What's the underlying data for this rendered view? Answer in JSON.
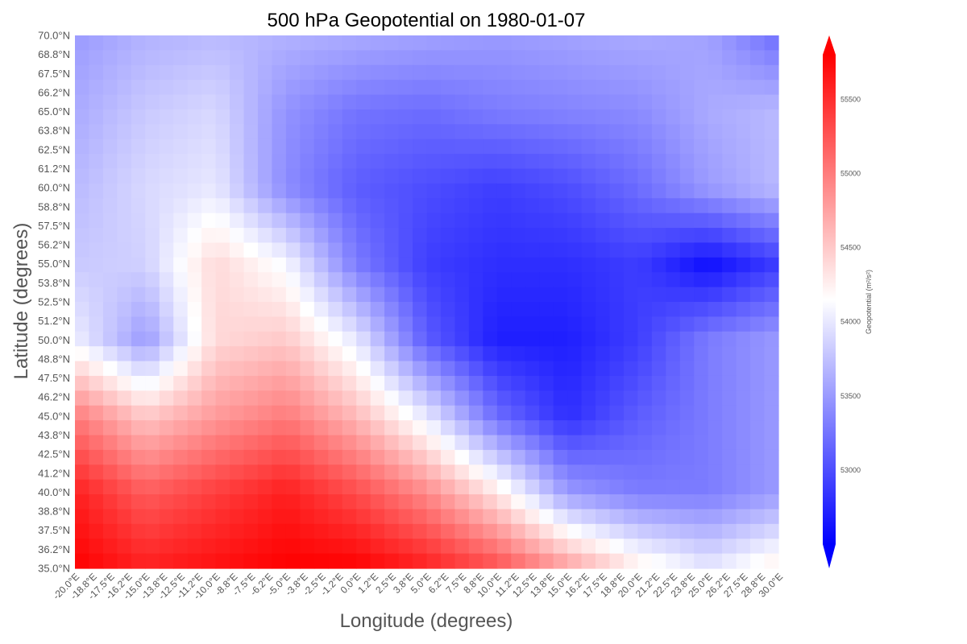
{
  "chart_data": {
    "type": "heatmap",
    "title": "500 hPa Geopotential on 1980-01-07",
    "xlabel": "Longitude (degrees)",
    "ylabel": "Latitude (degrees)",
    "colorbar_label": "Geopotential (m²/s²)",
    "colormap": "bwr",
    "colors": {
      "low": "#0000ff",
      "mid": "#ffffff",
      "high": "#ff0000"
    },
    "value_range": [
      52500,
      55800
    ],
    "colorbar_ticks": [
      55500,
      55000,
      54500,
      54000,
      53500,
      53000
    ],
    "x_ticks": [
      "-20.0°E",
      "-18.8°E",
      "-17.5°E",
      "-16.2°E",
      "-15.0°E",
      "-13.8°E",
      "-12.5°E",
      "-11.2°E",
      "-10.0°E",
      "-8.8°E",
      "-7.5°E",
      "-6.2°E",
      "-5.0°E",
      "-3.8°E",
      "-2.5°E",
      "-1.2°E",
      "0.0°E",
      "1.2°E",
      "2.5°E",
      "3.8°E",
      "5.0°E",
      "6.2°E",
      "7.5°E",
      "8.8°E",
      "10.0°E",
      "11.2°E",
      "12.5°E",
      "13.8°E",
      "15.0°E",
      "16.2°E",
      "17.5°E",
      "18.8°E",
      "20.0°E",
      "21.2°E",
      "22.5°E",
      "23.8°E",
      "25.0°E",
      "26.2°E",
      "27.5°E",
      "28.8°E",
      "30.0°E"
    ],
    "y_ticks": [
      "70.0°N",
      "68.8°N",
      "67.5°N",
      "66.2°N",
      "65.0°N",
      "63.8°N",
      "62.5°N",
      "61.2°N",
      "60.0°N",
      "58.8°N",
      "57.5°N",
      "56.2°N",
      "55.0°N",
      "53.8°N",
      "52.5°N",
      "51.2°N",
      "50.0°N",
      "48.8°N",
      "47.5°N",
      "46.2°N",
      "45.0°N",
      "43.8°N",
      "42.5°N",
      "41.2°N",
      "40.0°N",
      "38.8°N",
      "37.5°N",
      "36.2°N",
      "35.0°N"
    ],
    "xlim": [
      -20.0,
      30.0
    ],
    "ylim": [
      35.0,
      70.0
    ],
    "grid": false,
    "field_approx": {
      "description": "approximate geopotential (m²/s²) sampled on a coarse grid, rows from 70.0°N down to 35.0°N, columns from -20.0°E to 30.0°E in 5° steps",
      "lons": [
        -20,
        -15,
        -10,
        -5,
        0,
        5,
        10,
        15,
        20,
        25,
        30
      ],
      "lats": [
        70,
        65,
        60,
        55,
        50,
        45,
        40,
        35
      ],
      "values": [
        [
          53500,
          53650,
          53700,
          53650,
          53600,
          53550,
          53500,
          53550,
          53600,
          53550,
          53200
        ],
        [
          53600,
          53800,
          53900,
          53450,
          53250,
          53200,
          53300,
          53350,
          53400,
          53600,
          53700
        ],
        [
          53700,
          53900,
          54000,
          53400,
          53100,
          53000,
          52900,
          53000,
          53200,
          53500,
          53700
        ],
        [
          53800,
          53850,
          54400,
          54100,
          53300,
          52900,
          52800,
          52800,
          52900,
          52600,
          52900
        ],
        [
          54050,
          53500,
          54400,
          54500,
          54000,
          53100,
          52700,
          52700,
          52900,
          53300,
          53500
        ],
        [
          55000,
          54500,
          54800,
          55000,
          54600,
          54000,
          53200,
          52800,
          53100,
          53300,
          53500
        ],
        [
          55600,
          55200,
          55400,
          55600,
          55300,
          54900,
          54300,
          53500,
          53300,
          53300,
          53500
        ],
        [
          55800,
          55600,
          55700,
          55800,
          55800,
          55600,
          55300,
          54800,
          54300,
          54000,
          54300
        ]
      ]
    }
  }
}
